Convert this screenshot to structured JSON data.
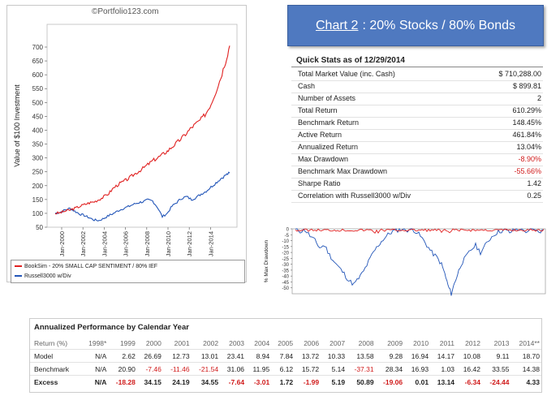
{
  "watermark": "©Portfolio123.com",
  "banner": {
    "prefix": "Chart 2",
    "rest": ": 20% Stocks / 80% Bonds"
  },
  "main_chart": {
    "ylabel": "Value of $100 Investment",
    "yticks": [
      "50",
      "100",
      "150",
      "200",
      "250",
      "300",
      "350",
      "400",
      "450",
      "500",
      "550",
      "600",
      "650",
      "700"
    ],
    "xticks": [
      "Jan-2000",
      "Jan-2002",
      "Jan-2004",
      "Jan-2006",
      "Jan-2008",
      "Jan-2010",
      "Jan-2012",
      "Jan-2014"
    ],
    "legend": [
      {
        "label": "BookSim - 20% SMALL CAP SENTIMENT / 80% IEF",
        "color": "#e02020"
      },
      {
        "label": "Russell3000 w/Div",
        "color": "#2255b8"
      }
    ]
  },
  "stats": {
    "title": "Quick Stats as of 12/29/2014",
    "rows": [
      {
        "label": "Total Market Value (inc. Cash)",
        "value": "$ 710,288.00",
        "neg": false
      },
      {
        "label": "Cash",
        "value": "$ 899.81",
        "neg": false
      },
      {
        "label": "Number of Assets",
        "value": "2",
        "neg": false
      },
      {
        "label": "Total Return",
        "value": "610.29%",
        "neg": false
      },
      {
        "label": "Benchmark Return",
        "value": "148.45%",
        "neg": false
      },
      {
        "label": "Active Return",
        "value": "461.84%",
        "neg": false
      },
      {
        "label": "Annualized Return",
        "value": "13.04%",
        "neg": false
      },
      {
        "label": "Max Drawdown",
        "value": "-8.90%",
        "neg": true
      },
      {
        "label": "Benchmark Max Drawdown",
        "value": "-55.66%",
        "neg": true
      },
      {
        "label": "Sharpe Ratio",
        "value": "1.42",
        "neg": false
      },
      {
        "label": "Correlation with Russell3000 w/Div",
        "value": "0.25",
        "neg": false
      }
    ]
  },
  "drawdown_chart": {
    "ylabel": "% Max Drawdown",
    "yticks": [
      "0",
      "-5",
      "-10",
      "-15",
      "-20",
      "-25",
      "-30",
      "-35",
      "-40",
      "-45",
      "-50"
    ]
  },
  "performance": {
    "title": "Annualized Performance by Calendar Year",
    "header": [
      "Return (%)",
      "1998*",
      "1999",
      "2000",
      "2001",
      "2002",
      "2003",
      "2004",
      "2005",
      "2006",
      "2007",
      "2008",
      "2009",
      "2010",
      "2011",
      "2012",
      "2013",
      "2014**"
    ],
    "rows": [
      {
        "label": "Model",
        "cells": [
          {
            "v": "N/A",
            "neg": false
          },
          {
            "v": "2.62",
            "neg": false
          },
          {
            "v": "26.69",
            "neg": false
          },
          {
            "v": "12.73",
            "neg": false
          },
          {
            "v": "13.01",
            "neg": false
          },
          {
            "v": "23.41",
            "neg": false
          },
          {
            "v": "8.94",
            "neg": false
          },
          {
            "v": "7.84",
            "neg": false
          },
          {
            "v": "13.72",
            "neg": false
          },
          {
            "v": "10.33",
            "neg": false
          },
          {
            "v": "13.58",
            "neg": false
          },
          {
            "v": "9.28",
            "neg": false
          },
          {
            "v": "16.94",
            "neg": false
          },
          {
            "v": "14.17",
            "neg": false
          },
          {
            "v": "10.08",
            "neg": false
          },
          {
            "v": "9.11",
            "neg": false
          },
          {
            "v": "18.70",
            "neg": false
          }
        ]
      },
      {
        "label": "Benchmark",
        "cells": [
          {
            "v": "N/A",
            "neg": false
          },
          {
            "v": "20.90",
            "neg": false
          },
          {
            "v": "-7.46",
            "neg": true
          },
          {
            "v": "-11.46",
            "neg": true
          },
          {
            "v": "-21.54",
            "neg": true
          },
          {
            "v": "31.06",
            "neg": false
          },
          {
            "v": "11.95",
            "neg": false
          },
          {
            "v": "6.12",
            "neg": false
          },
          {
            "v": "15.72",
            "neg": false
          },
          {
            "v": "5.14",
            "neg": false
          },
          {
            "v": "-37.31",
            "neg": true
          },
          {
            "v": "28.34",
            "neg": false
          },
          {
            "v": "16.93",
            "neg": false
          },
          {
            "v": "1.03",
            "neg": false
          },
          {
            "v": "16.42",
            "neg": false
          },
          {
            "v": "33.55",
            "neg": false
          },
          {
            "v": "14.38",
            "neg": false
          }
        ]
      },
      {
        "label": "Excess",
        "cells": [
          {
            "v": "N/A",
            "neg": false
          },
          {
            "v": "-18.28",
            "neg": true
          },
          {
            "v": "34.15",
            "neg": false
          },
          {
            "v": "24.19",
            "neg": false
          },
          {
            "v": "34.55",
            "neg": false
          },
          {
            "v": "-7.64",
            "neg": true
          },
          {
            "v": "-3.01",
            "neg": true
          },
          {
            "v": "1.72",
            "neg": false
          },
          {
            "v": "-1.99",
            "neg": true
          },
          {
            "v": "5.19",
            "neg": false
          },
          {
            "v": "50.89",
            "neg": false
          },
          {
            "v": "-19.06",
            "neg": true
          },
          {
            "v": "0.01",
            "neg": false
          },
          {
            "v": "13.14",
            "neg": false
          },
          {
            "v": "-6.34",
            "neg": true
          },
          {
            "v": "-24.44",
            "neg": true
          },
          {
            "v": "4.33",
            "neg": false
          }
        ]
      }
    ]
  }
}
